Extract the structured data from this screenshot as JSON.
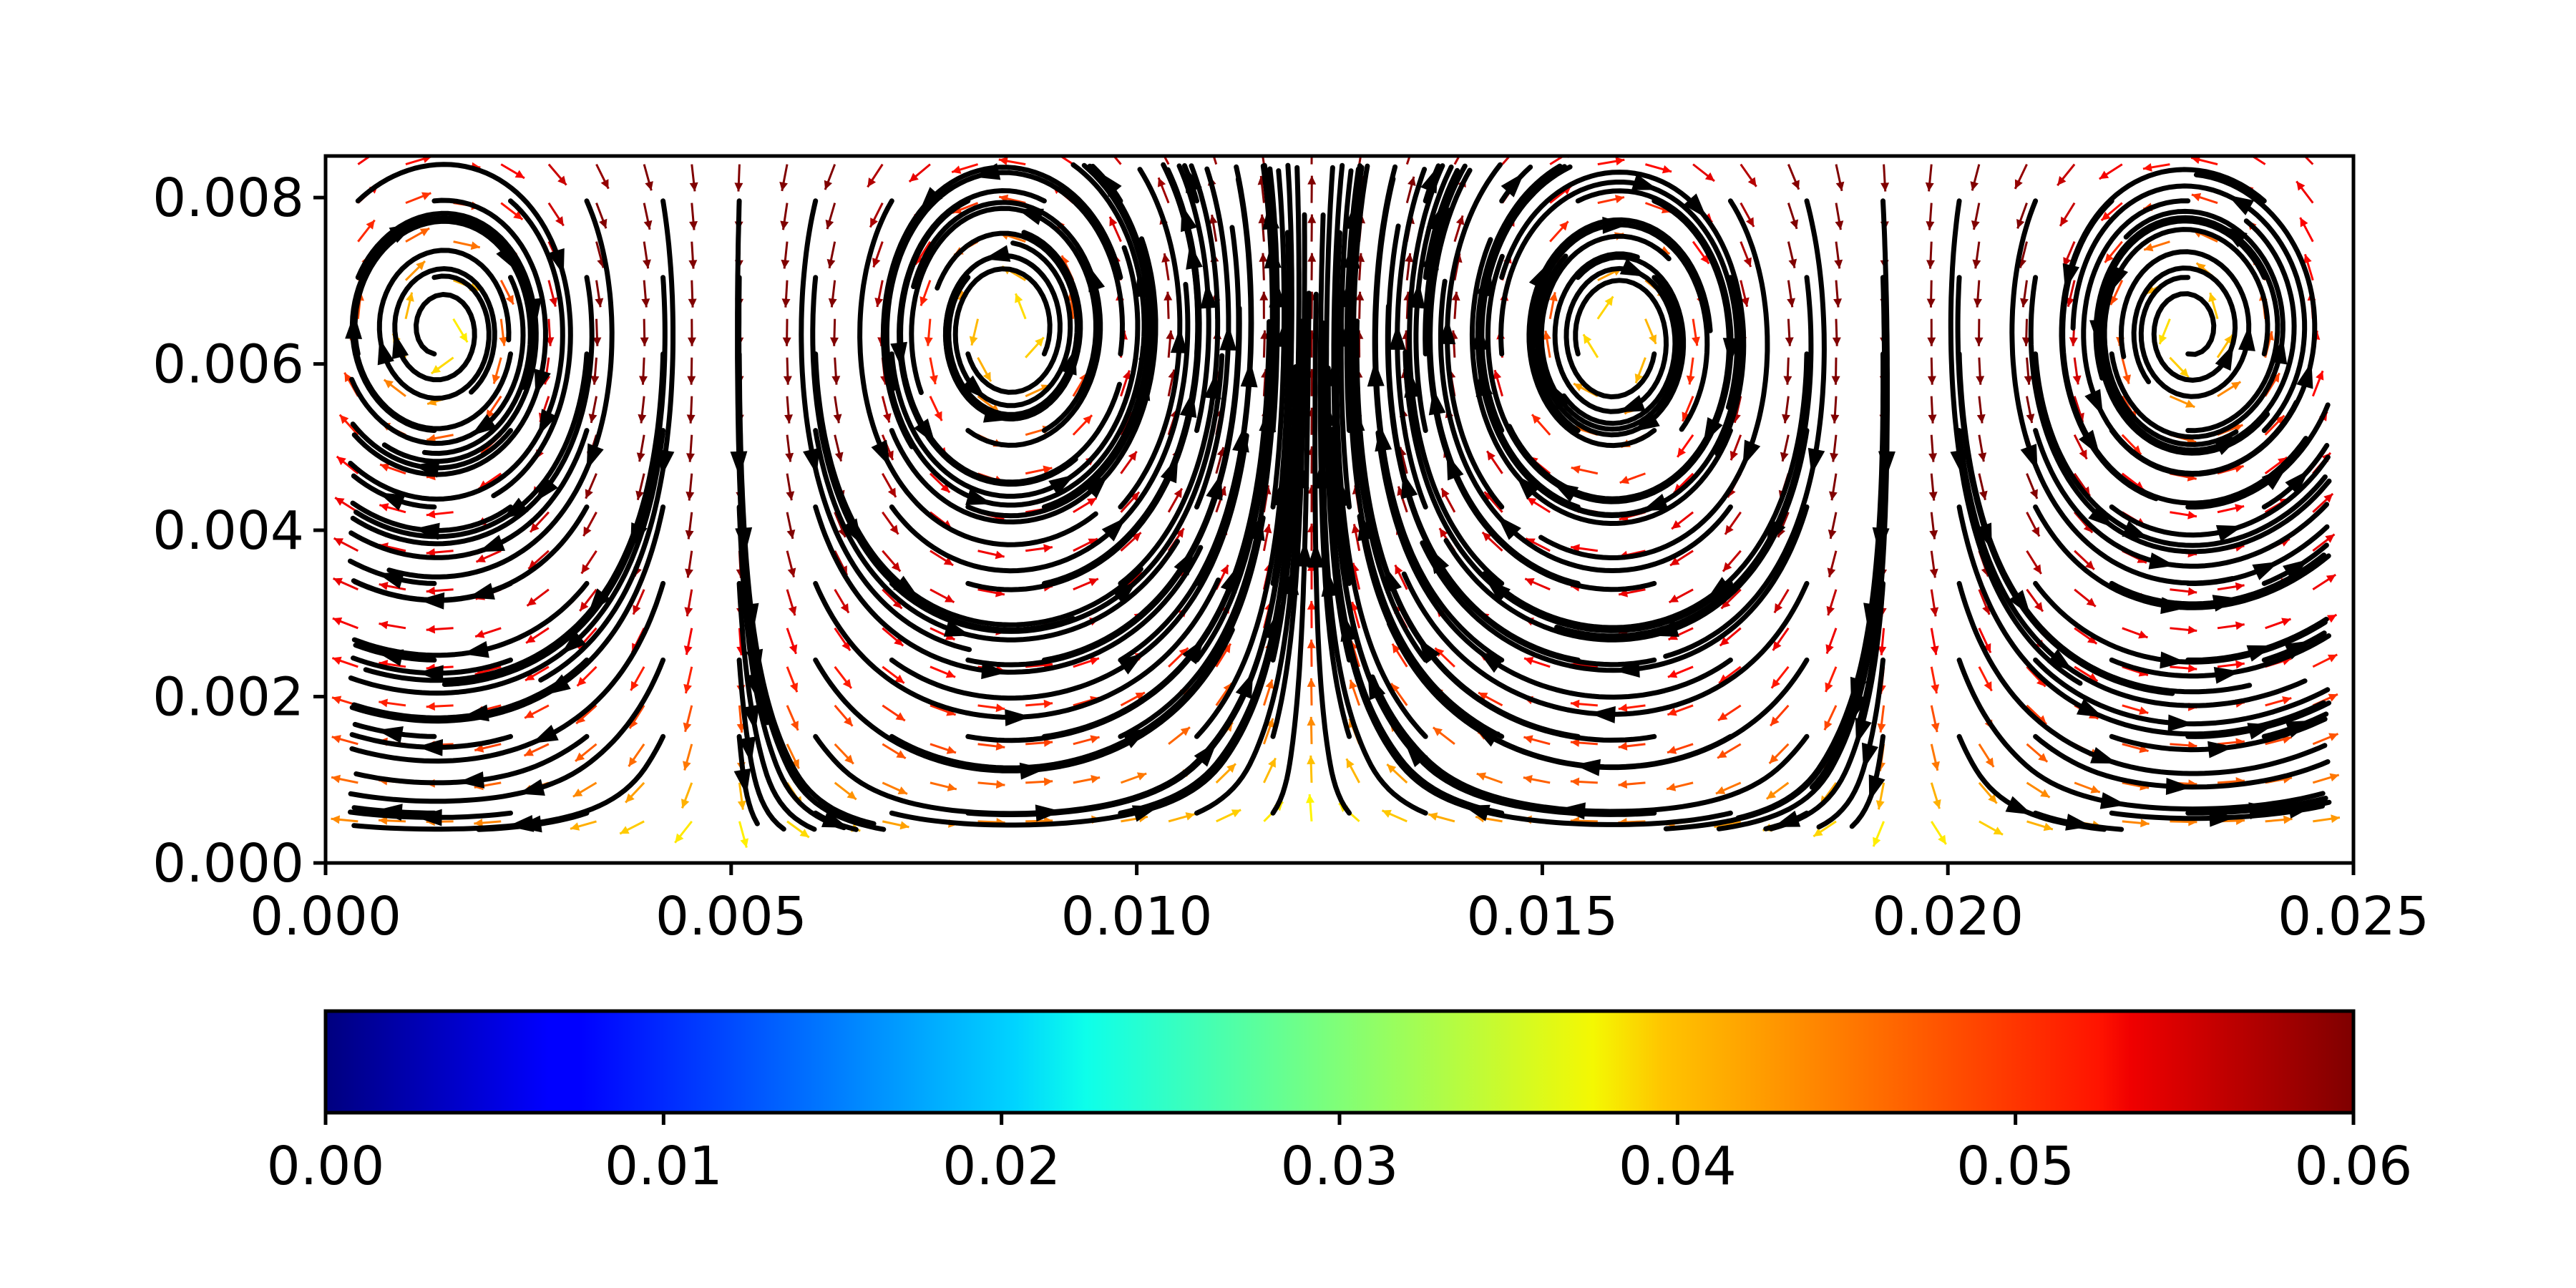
{
  "chart_data": {
    "type": "streamplot",
    "title": "",
    "xlabel": "",
    "ylabel": "",
    "xlim": [
      0.0,
      0.025
    ],
    "ylim": [
      0.0,
      0.0085
    ],
    "x_ticks": [
      "0.000",
      "0.005",
      "0.010",
      "0.015",
      "0.020",
      "0.025"
    ],
    "x_tick_values": [
      0.0,
      0.005,
      0.01,
      0.015,
      0.02,
      0.025
    ],
    "y_ticks": [
      "0.000",
      "0.002",
      "0.004",
      "0.006",
      "0.008"
    ],
    "y_tick_values": [
      0.0,
      0.002,
      0.004,
      0.006,
      0.008
    ],
    "vortices": [
      {
        "x": 0.0016,
        "y": 0.0064,
        "rotation": "clockwise"
      },
      {
        "x": 0.0083,
        "y": 0.0064,
        "rotation": "counterclockwise"
      },
      {
        "x": 0.016,
        "y": 0.0063,
        "rotation": "clockwise"
      },
      {
        "x": 0.0228,
        "y": 0.0064,
        "rotation": "counterclockwise"
      }
    ],
    "colorbar": {
      "orientation": "horizontal",
      "colormap": "jet",
      "range": [
        0.0,
        0.06
      ],
      "ticks": [
        "0.00",
        "0.01",
        "0.02",
        "0.03",
        "0.04",
        "0.05",
        "0.06"
      ],
      "tick_values": [
        0.0,
        0.01,
        0.02,
        0.03,
        0.04,
        0.05,
        0.06
      ]
    },
    "streamline_color": "#000000",
    "grid": false
  }
}
